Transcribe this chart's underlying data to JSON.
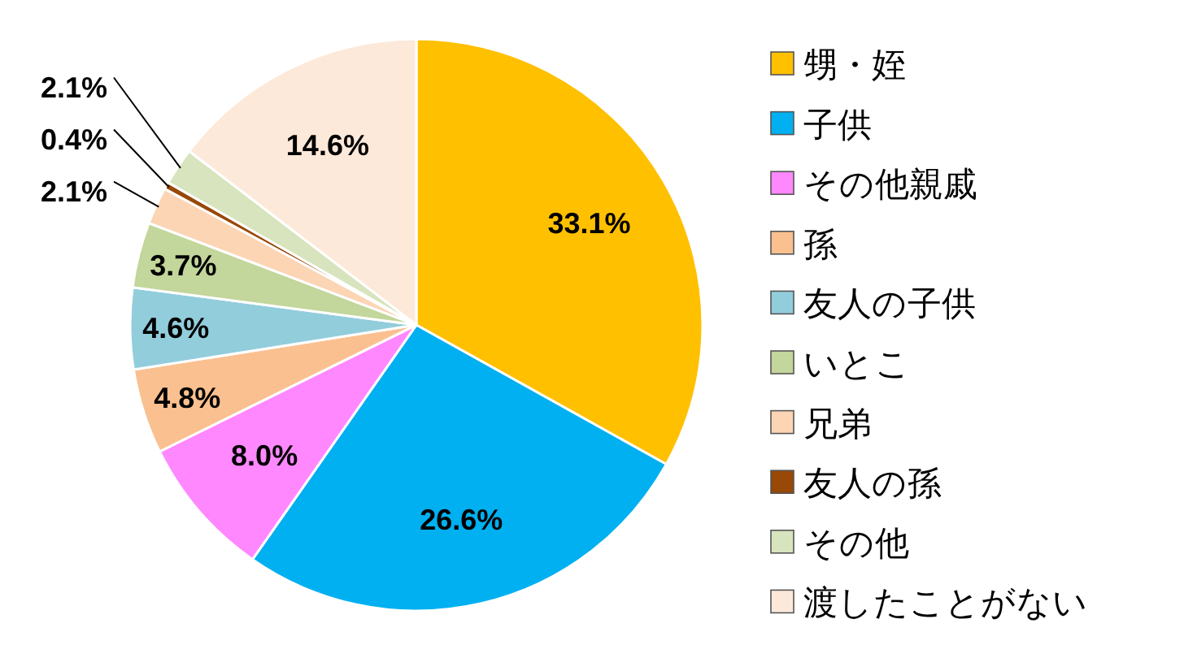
{
  "chart_data": {
    "type": "pie",
    "categories": [
      "甥・姪",
      "子供",
      "その他親戚",
      "孫",
      "友人の子供",
      "いとこ",
      "兄弟",
      "友人の孫",
      "その他",
      "渡したことがない"
    ],
    "values": [
      33.1,
      26.6,
      8.0,
      4.8,
      4.6,
      3.7,
      2.1,
      0.4,
      2.1,
      14.6
    ],
    "value_labels": [
      "33.1%",
      "26.6%",
      "8.0%",
      "4.8%",
      "4.6%",
      "3.7%",
      "2.1%",
      "0.4%",
      "2.1%",
      "14.6%"
    ],
    "colors": [
      "#ffc000",
      "#00b0f0",
      "#ff88ff",
      "#fac090",
      "#92cddc",
      "#c3d69b",
      "#fcd5b5",
      "#984807",
      "#d7e4bd",
      "#fde9d9"
    ],
    "legend": "right"
  }
}
